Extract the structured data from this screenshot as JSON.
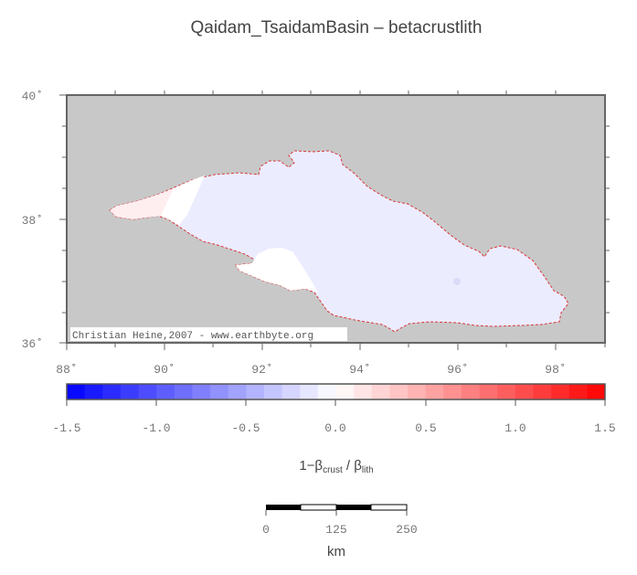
{
  "title": "Qaidam_TsaidamBasin – betacrustlith",
  "map": {
    "lat_labels": [
      "40˚",
      "38˚",
      "36˚"
    ],
    "lon_labels": [
      "88˚",
      "90˚",
      "92˚",
      "94˚",
      "96˚",
      "98˚"
    ],
    "lon_range": [
      88,
      99
    ],
    "lat_range": [
      36,
      40
    ],
    "credit": "Christian Heine,2007 - www.earthbyte.org",
    "background_color": "#c8c8c8",
    "basin_fill_color": "#ececff",
    "basin_outline_color": "#d83838"
  },
  "colorbar": {
    "tick_labels": [
      "-1.5",
      "-1.0",
      "-0.5",
      "0.0",
      "0.5",
      "1.0",
      "1.5"
    ],
    "range": [
      -1.5,
      1.5
    ],
    "label_main": "1−β",
    "label_sub1": "crust",
    "label_mid": " / β",
    "label_sub2": "lith",
    "color_low": "#0000ff",
    "color_mid": "#ffffff",
    "color_high": "#ff0000",
    "steps": 30
  },
  "scalebar": {
    "tick_labels": [
      "0",
      "125",
      "250"
    ],
    "unit": "km"
  }
}
